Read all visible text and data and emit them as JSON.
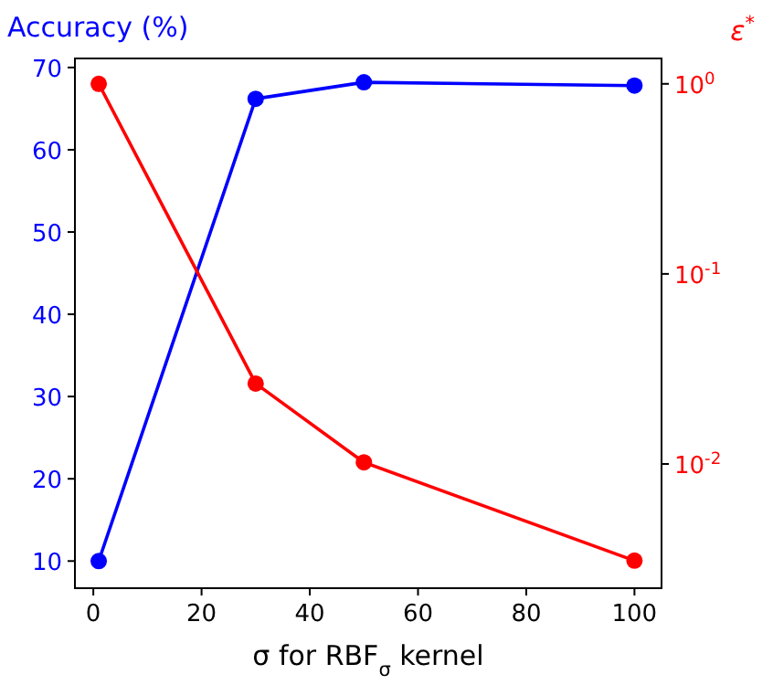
{
  "chart_data": {
    "type": "line",
    "ylabel": "Accuracy (%)",
    "y2label": "ε$^{*}$",
    "xlabel": "σ for RBF$_{σ}$ kernel",
    "x": [
      1,
      30,
      50,
      100
    ],
    "series": [
      {
        "color": "#0000ff",
        "values": [
          10,
          66.2,
          68.2,
          67.8
        ]
      },
      {
        "color": "#ff0000",
        "values": [
          1.0,
          0.0265,
          0.0102,
          0.0031
        ],
        "axis": "y2"
      }
    ],
    "xlim": [
      -3.4,
      105
    ],
    "xticks": [
      0,
      20,
      40,
      60,
      80,
      100
    ],
    "ylim": [
      6.7,
      71.1
    ],
    "yticks": [
      10,
      20,
      30,
      40,
      50,
      60,
      70
    ],
    "y2lim": [
      0.00222,
      1.36
    ],
    "y2ticks": [
      {
        "value": 1,
        "label": "10$^{0}$"
      },
      {
        "value": 0.1,
        "label": "10$^{-1}$"
      },
      {
        "value": 0.01,
        "label": "10$^{-2}$"
      }
    ],
    "log": "y2",
    "marker": "circle",
    "line_style": "solid"
  }
}
